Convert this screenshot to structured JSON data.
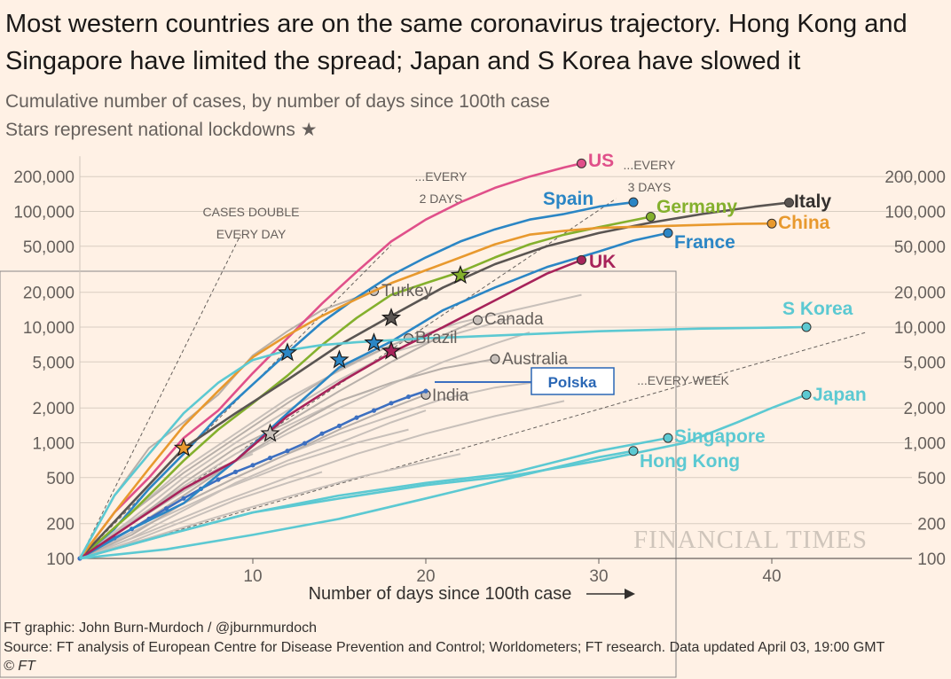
{
  "header": {
    "title": "Most western countries are on the same coronavirus trajectory. Hong Kong and Singapore have limited the spread; Japan and S Korea have slowed it",
    "subtitle": "Cumulative number of cases, by number of days since 100th case",
    "subtitle2": "Stars represent national lockdowns",
    "star_icon": "★"
  },
  "footer": {
    "credit": "FT graphic: John Burn-Murdoch / @jburnmurdoch",
    "source": "Source: FT analysis of European Centre for Disease Prevention and Control; Worldometers; FT research. Data updated April 03, 19:00 GMT",
    "copyright": "© FT"
  },
  "watermark": "FINANCIAL TIMES",
  "chart_data": {
    "type": "line",
    "title": "Most western countries are on the same coronavirus trajectory. Hong Kong and Singapore have limited the spread; Japan and S Korea have slowed it",
    "subtitle": "Cumulative number of cases, by number of days since 100th case",
    "xlabel": "Number of days since 100th case",
    "ylabel": "",
    "yscale": "log",
    "xlim": [
      0,
      46
    ],
    "ylim": [
      100,
      300000
    ],
    "xticks": [
      10,
      20,
      30,
      40
    ],
    "yticks": [
      {
        "value": 100,
        "label": "100"
      },
      {
        "value": 200,
        "label": "200"
      },
      {
        "value": 500,
        "label": "500"
      },
      {
        "value": 1000,
        "label": "1,000"
      },
      {
        "value": 2000,
        "label": "2,000"
      },
      {
        "value": 5000,
        "label": "5,000"
      },
      {
        "value": 10000,
        "label": "10,000"
      },
      {
        "value": 20000,
        "label": "20,000"
      },
      {
        "value": 50000,
        "label": "50,000"
      },
      {
        "value": 100000,
        "label": "100,000"
      },
      {
        "value": 200000,
        "label": "200,000"
      }
    ],
    "guides": [
      {
        "label1": "CASES DOUBLE",
        "label2": "EVERY DAY",
        "doubling_days": 1
      },
      {
        "label1": "...EVERY",
        "label2": "2 DAYS",
        "doubling_days": 2
      },
      {
        "label1": "...EVERY",
        "label2": "3 DAYS",
        "doubling_days": 3
      },
      {
        "label1": "...EVERY WEEK",
        "label2": "",
        "doubling_days": 7
      }
    ],
    "series": [
      {
        "name": "US",
        "color": "#e0508a",
        "style": "highlight",
        "x": [
          0,
          2,
          4,
          6,
          8,
          10,
          12,
          14,
          16,
          18,
          20,
          22,
          24,
          26,
          28,
          29
        ],
        "y": [
          100,
          250,
          500,
          1100,
          1900,
          4000,
          8000,
          16000,
          30000,
          55000,
          85000,
          120000,
          160000,
          200000,
          240000,
          260000
        ]
      },
      {
        "name": "Spain",
        "color": "#2b86c5",
        "style": "highlight",
        "x": [
          0,
          2,
          4,
          6,
          8,
          10,
          12,
          14,
          16,
          18,
          20,
          22,
          24,
          26,
          28,
          30,
          32
        ],
        "y": [
          100,
          180,
          400,
          800,
          1700,
          3200,
          6000,
          11000,
          18000,
          28000,
          40000,
          55000,
          70000,
          85000,
          95000,
          110000,
          120000
        ]
      },
      {
        "name": "Germany",
        "color": "#84b02d",
        "style": "highlight",
        "x": [
          0,
          3,
          6,
          8,
          10,
          12,
          14,
          16,
          18,
          20,
          22,
          24,
          26,
          28,
          30,
          33
        ],
        "y": [
          100,
          250,
          700,
          1300,
          2200,
          3800,
          7000,
          12000,
          19000,
          24000,
          30000,
          40000,
          52000,
          63000,
          73000,
          90000
        ]
      },
      {
        "name": "Italy",
        "color": "#5a5552",
        "style": "highlight",
        "x": [
          0,
          3,
          6,
          9,
          12,
          15,
          18,
          21,
          24,
          27,
          30,
          33,
          36,
          39,
          41
        ],
        "y": [
          100,
          300,
          900,
          1800,
          3500,
          7000,
          12500,
          22000,
          35000,
          50000,
          65000,
          80000,
          95000,
          110000,
          119000
        ]
      },
      {
        "name": "China",
        "color": "#e8992e",
        "style": "highlight",
        "x": [
          0,
          2,
          4,
          6,
          8,
          10,
          12,
          14,
          16,
          18,
          20,
          22,
          24,
          26,
          28,
          30,
          34,
          38,
          40
        ],
        "y": [
          100,
          250,
          600,
          1400,
          2800,
          5500,
          8500,
          12500,
          17500,
          24000,
          31000,
          40000,
          52000,
          63000,
          68000,
          72000,
          75000,
          78000,
          78500
        ]
      },
      {
        "name": "France",
        "color": "#2b86c5",
        "style": "highlight",
        "x": [
          0,
          3,
          6,
          9,
          12,
          15,
          18,
          21,
          24,
          27,
          30,
          32,
          34
        ],
        "y": [
          100,
          180,
          300,
          700,
          1800,
          4500,
          7500,
          14000,
          22000,
          33000,
          45000,
          56000,
          65000
        ]
      },
      {
        "name": "UK",
        "color": "#a7235a",
        "style": "highlight",
        "x": [
          0,
          3,
          6,
          9,
          12,
          15,
          18,
          21,
          24,
          27,
          29
        ],
        "y": [
          100,
          200,
          400,
          700,
          1700,
          3300,
          6000,
          10000,
          17000,
          29000,
          38000
        ]
      },
      {
        "name": "S Korea",
        "color": "#5cc9d2",
        "style": "highlight",
        "x": [
          0,
          2,
          4,
          6,
          8,
          10,
          12,
          14,
          16,
          18,
          20,
          22,
          26,
          30,
          36,
          42
        ],
        "y": [
          100,
          350,
          800,
          1800,
          3300,
          5200,
          6300,
          7000,
          7400,
          7700,
          8000,
          8200,
          8700,
          9200,
          9700,
          10000
        ]
      },
      {
        "name": "Japan",
        "color": "#5cc9d2",
        "style": "highlight",
        "x": [
          0,
          5,
          10,
          15,
          20,
          25,
          30,
          35,
          38,
          40,
          42
        ],
        "y": [
          100,
          160,
          250,
          330,
          430,
          520,
          700,
          1000,
          1500,
          2000,
          2600
        ]
      },
      {
        "name": "Singapore",
        "color": "#5cc9d2",
        "style": "highlight",
        "x": [
          0,
          5,
          10,
          15,
          20,
          25,
          30,
          34
        ],
        "y": [
          100,
          160,
          250,
          350,
          450,
          550,
          850,
          1100
        ]
      },
      {
        "name": "Hong Kong",
        "color": "#5cc9d2",
        "style": "highlight",
        "x": [
          0,
          5,
          10,
          15,
          20,
          25,
          30,
          32
        ],
        "y": [
          100,
          120,
          160,
          220,
          330,
          500,
          750,
          850
        ]
      },
      {
        "name": "Turkey",
        "color": "#b8b0aa",
        "style": "grey",
        "x": [
          0,
          2,
          4,
          6,
          8,
          10,
          12,
          14,
          16,
          17
        ],
        "y": [
          100,
          350,
          900,
          1500,
          2600,
          5700,
          9200,
          14000,
          18000,
          20500
        ]
      },
      {
        "name": "Canada",
        "color": "#b8b0aa",
        "style": "grey",
        "x": [
          0,
          3,
          6,
          9,
          12,
          15,
          18,
          21,
          23
        ],
        "y": [
          100,
          200,
          450,
          900,
          1500,
          2800,
          5000,
          8500,
          11500
        ]
      },
      {
        "name": "Brazil",
        "color": "#b8b0aa",
        "style": "grey",
        "x": [
          0,
          3,
          6,
          9,
          12,
          15,
          17,
          19
        ],
        "y": [
          100,
          250,
          550,
          1100,
          2200,
          4300,
          6000,
          8000
        ]
      },
      {
        "name": "Australia",
        "color": "#b8b0aa",
        "style": "grey",
        "x": [
          0,
          3,
          6,
          9,
          12,
          15,
          18,
          21,
          24
        ],
        "y": [
          100,
          180,
          350,
          700,
          1300,
          2300,
          3300,
          4400,
          5300
        ]
      },
      {
        "name": "India",
        "color": "#b8b0aa",
        "style": "grey",
        "x": [
          0,
          3,
          6,
          9,
          12,
          15,
          18,
          20
        ],
        "y": [
          100,
          160,
          300,
          500,
          800,
          1300,
          2000,
          2600
        ]
      },
      {
        "name": "Polska",
        "color": "#3c6fc0",
        "style": "dotted",
        "x": [
          0,
          1,
          2,
          3,
          4,
          5,
          6,
          7,
          8,
          9,
          10,
          11,
          12,
          13,
          14,
          15,
          16,
          17,
          18,
          19,
          20
        ],
        "y": [
          100,
          125,
          150,
          180,
          220,
          270,
          330,
          400,
          480,
          560,
          640,
          740,
          850,
          990,
          1200,
          1400,
          1650,
          1900,
          2200,
          2500,
          2800
        ]
      }
    ],
    "lockdowns": [
      {
        "series": "China",
        "x": 6,
        "y": 900,
        "color": "#e8992e"
      },
      {
        "series": "Spain",
        "x": 12,
        "y": 6000,
        "color": "#2b86c5"
      },
      {
        "series": "Polska",
        "x": 11,
        "y": 1200,
        "color": "#c8c0ba"
      },
      {
        "series": "France",
        "x": 15,
        "y": 5200,
        "color": "#2b86c5"
      },
      {
        "series": "France",
        "x": 17,
        "y": 7300,
        "color": "#2b86c5"
      },
      {
        "series": "UK",
        "x": 18,
        "y": 6200,
        "color": "#a7235a"
      },
      {
        "series": "Italy",
        "x": 18,
        "y": 12000,
        "color": "#5a5552"
      },
      {
        "series": "Germany",
        "x": 22,
        "y": 28000,
        "color": "#84b02d"
      }
    ]
  }
}
